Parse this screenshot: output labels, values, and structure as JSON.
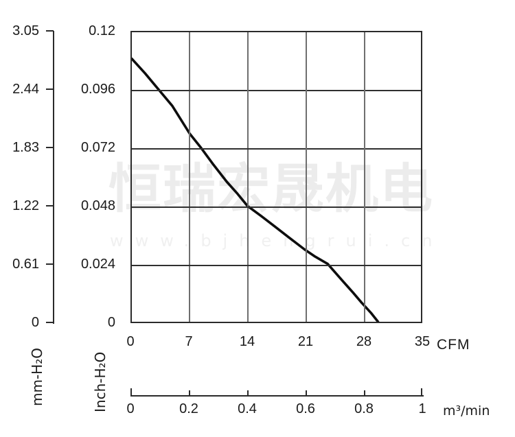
{
  "watermark": {
    "cjk_text": "恒瑞宏晟机电",
    "url_text": "www.bjhengrui.cn",
    "cjk_color": "#ececec",
    "url_color": "#f0f0f0"
  },
  "chart_data": {
    "type": "line",
    "title": "",
    "description": "Fan static pressure vs airflow performance curve",
    "grid": true,
    "curve_color": "#0d0d0d",
    "axes": {
      "x_cfm": {
        "unit_label": "CFM",
        "ticks": [
          "0",
          "7",
          "14",
          "21",
          "28",
          "35"
        ],
        "range": [
          0,
          35
        ]
      },
      "x_m3min": {
        "unit_label": "m³/min",
        "ticks": [
          "0",
          "0.2",
          "0.4",
          "0.6",
          "0.8",
          "1"
        ],
        "range": [
          0,
          1
        ]
      },
      "y_inch": {
        "title": "Inch-H₂O",
        "ticks": [
          "0.12",
          "0.096",
          "0.072",
          "0.048",
          "0.024",
          "0"
        ],
        "range": [
          0,
          0.12
        ]
      },
      "y_mm": {
        "title": "mm-H₂O",
        "ticks": [
          "3.05",
          "2.44",
          "1.83",
          "1.22",
          "0.61",
          "0"
        ],
        "range": [
          0,
          3.05
        ]
      }
    },
    "series": [
      {
        "name": "static-pressure-curve",
        "x_cfm": [
          0,
          1.6,
          3.3,
          4.9,
          7,
          8.4,
          9.9,
          11.5,
          12.8,
          14,
          15.6,
          17.3,
          19,
          20.9,
          22.2,
          23.7,
          25.5,
          26.8,
          27.8,
          29,
          29.8
        ],
        "y_inch_h2o": [
          0.109,
          0.103,
          0.096,
          0.0895,
          0.078,
          0.072,
          0.065,
          0.058,
          0.053,
          0.048,
          0.044,
          0.0395,
          0.035,
          0.03,
          0.027,
          0.024,
          0.017,
          0.012,
          0.008,
          0.0035,
          0
        ]
      }
    ]
  }
}
